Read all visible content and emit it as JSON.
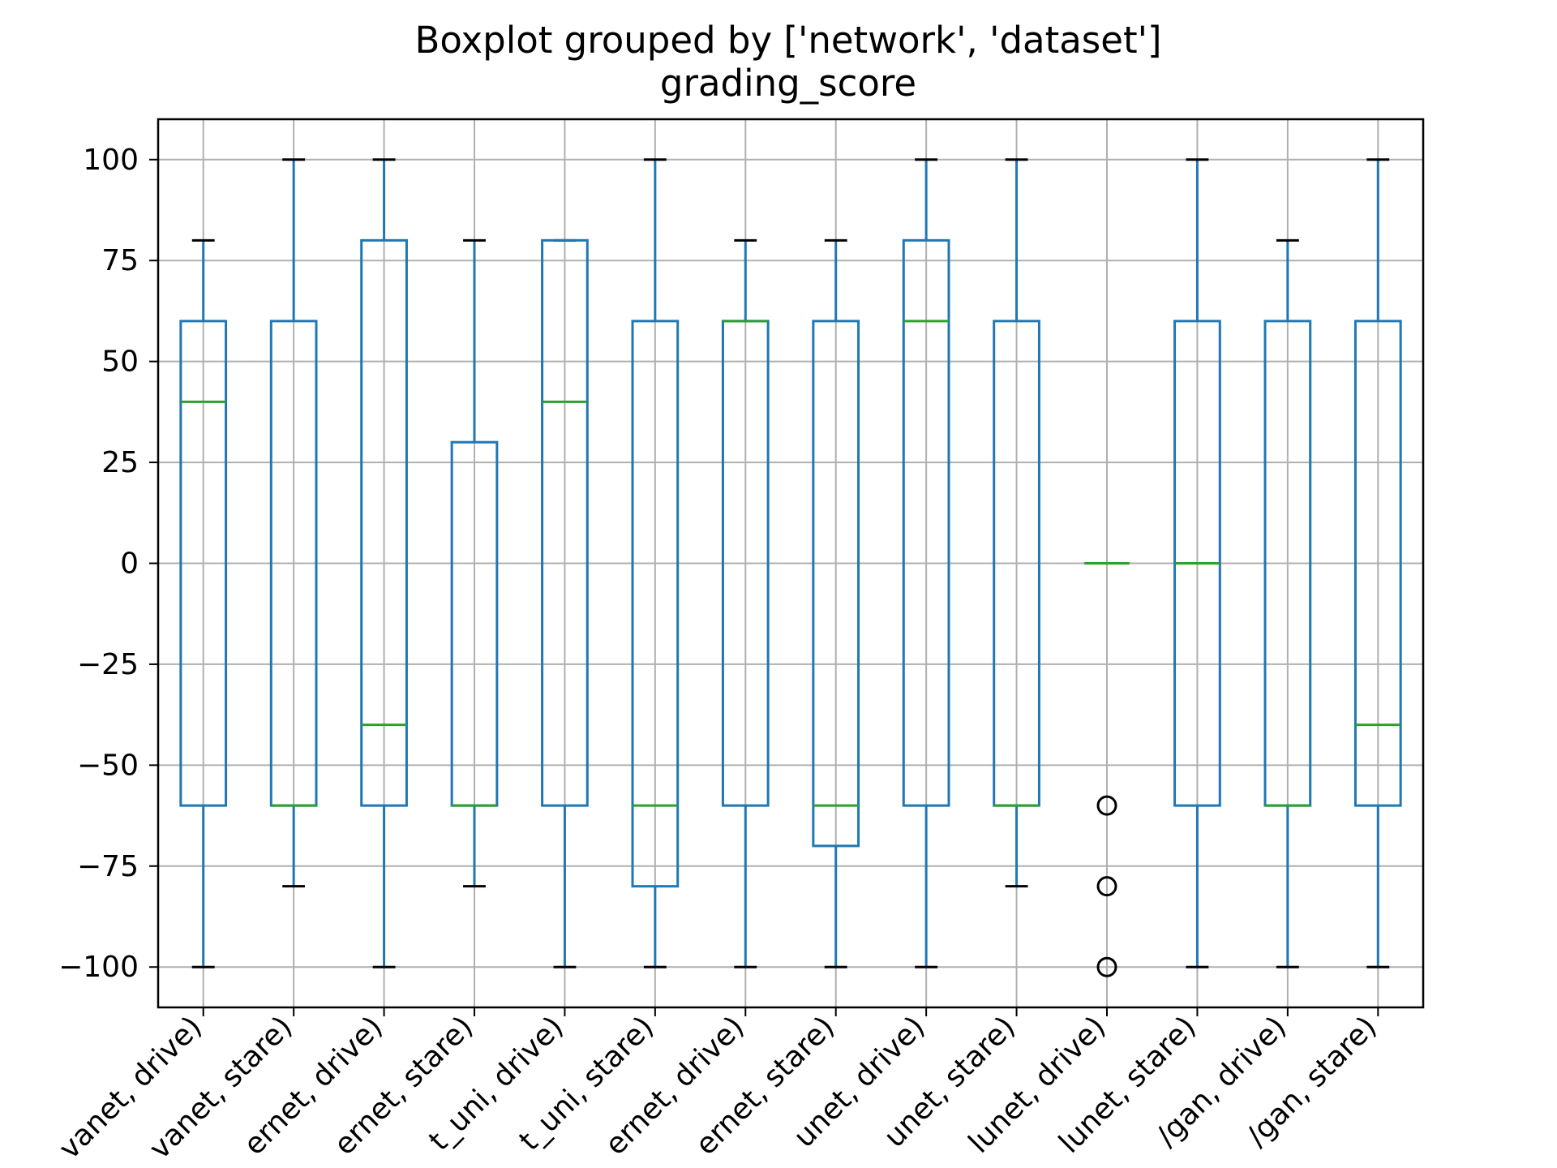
{
  "chart_data": {
    "type": "boxplot",
    "title": "Boxplot grouped by ['network', 'dataset']",
    "subtitle": "grading_score",
    "xlabel": "",
    "ylabel": "",
    "ylim": [
      -110,
      110
    ],
    "yticks": [
      100,
      75,
      50,
      25,
      0,
      -25,
      -50,
      -75,
      -100
    ],
    "ytick_labels": [
      "100",
      "75",
      "50",
      "25",
      "0",
      "−25",
      "−50",
      "−75",
      "−100"
    ],
    "grid": true,
    "categories": [
      "vanet, drive)",
      "vanet, stare)",
      "ernet, drive)",
      "ernet, stare)",
      "t_uni, drive)",
      "t_uni, stare)",
      "ernet, drive)",
      "ernet, stare)",
      "unet, drive)",
      "unet, stare)",
      "lunet, drive)",
      "lunet, stare)",
      "/gan, drive)",
      "/gan, stare)"
    ],
    "boxes": [
      {
        "whislo": -100,
        "q1": -60,
        "med": 40,
        "q3": 60,
        "whishi": 80,
        "fliers": []
      },
      {
        "whislo": -80,
        "q1": -60,
        "med": -60,
        "q3": 60,
        "whishi": 100,
        "fliers": []
      },
      {
        "whislo": -100,
        "q1": -60,
        "med": -40,
        "q3": 80,
        "whishi": 100,
        "fliers": []
      },
      {
        "whislo": -80,
        "q1": -60,
        "med": -60,
        "q3": 30,
        "whishi": 80,
        "fliers": []
      },
      {
        "whislo": -100,
        "q1": -60,
        "med": 40,
        "q3": 80,
        "whishi": 80,
        "fliers": []
      },
      {
        "whislo": -100,
        "q1": -80,
        "med": -60,
        "q3": 60,
        "whishi": 100,
        "fliers": []
      },
      {
        "whislo": -100,
        "q1": -60,
        "med": 60,
        "q3": 60,
        "whishi": 80,
        "fliers": []
      },
      {
        "whislo": -100,
        "q1": -70,
        "med": -60,
        "q3": 60,
        "whishi": 80,
        "fliers": []
      },
      {
        "whislo": -100,
        "q1": -60,
        "med": 60,
        "q3": 80,
        "whishi": 100,
        "fliers": []
      },
      {
        "whislo": -80,
        "q1": -60,
        "med": -60,
        "q3": 60,
        "whishi": 100,
        "fliers": []
      },
      {
        "whislo": 0,
        "q1": 0,
        "med": 0,
        "q3": 0,
        "whishi": 0,
        "fliers": [
          -60,
          -80,
          -100
        ]
      },
      {
        "whislo": -100,
        "q1": -60,
        "med": 0,
        "q3": 60,
        "whishi": 100,
        "fliers": []
      },
      {
        "whislo": -100,
        "q1": -60,
        "med": -60,
        "q3": 60,
        "whishi": 80,
        "fliers": []
      },
      {
        "whislo": -100,
        "q1": -60,
        "med": -40,
        "q3": 60,
        "whishi": 100,
        "fliers": []
      }
    ],
    "colors": {
      "box": "#1f77b4",
      "median": "#2ca02c",
      "grid": "#b0b0b0",
      "axes": "#000000",
      "flier": "#000000"
    }
  }
}
